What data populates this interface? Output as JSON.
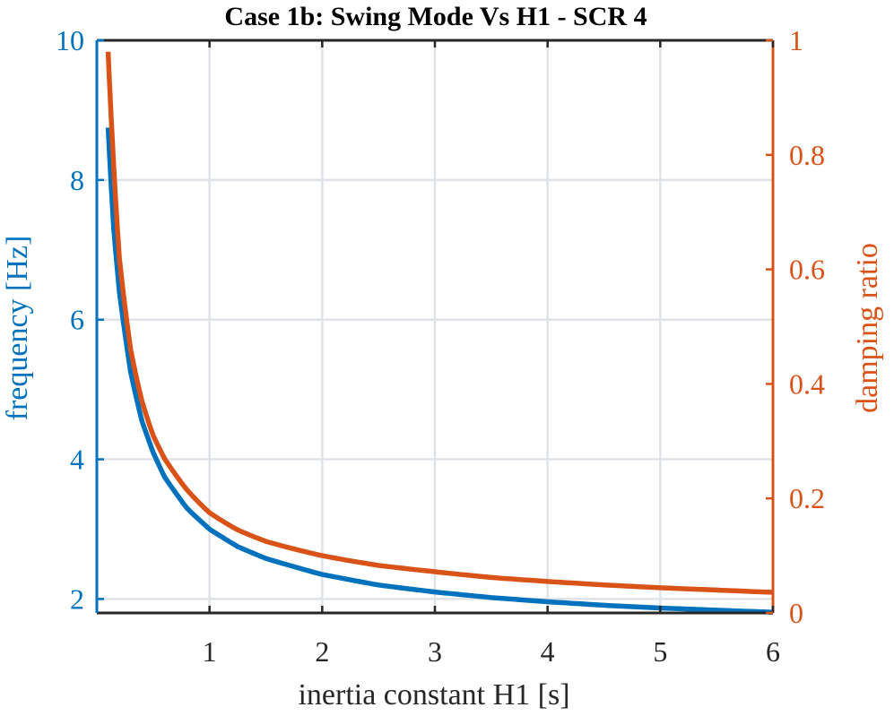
{
  "chart_data": {
    "type": "line",
    "title": "Case 1b: Swing Mode Vs H1 - SCR 4",
    "xlabel": "inertia constant H1 [s]",
    "ylabel_left": "frequency [Hz]",
    "ylabel_right": "damping ratio",
    "xlim": [
      0,
      6
    ],
    "ylim_left": [
      1.8,
      10
    ],
    "ylim_right": [
      0,
      1
    ],
    "x_ticks": [
      1,
      2,
      3,
      4,
      5,
      6
    ],
    "x_tick_labels": [
      "1",
      "2",
      "3",
      "4",
      "5",
      "6"
    ],
    "y_left_ticks": [
      2,
      4,
      6,
      8,
      10
    ],
    "y_left_tick_labels": [
      "2",
      "4",
      "6",
      "8",
      "10"
    ],
    "y_right_ticks": [
      0,
      0.2,
      0.4,
      0.6,
      0.8,
      1
    ],
    "y_right_tick_labels": [
      "0",
      "0.2",
      "0.4",
      "0.6",
      "0.8",
      "1"
    ],
    "grid": true,
    "colors": {
      "frequency": "#0072BD",
      "damping": "#D95319",
      "grid": "#dfe3e8",
      "axis": "#262626"
    },
    "series": [
      {
        "axis": "left",
        "x": [
          0.1,
          0.15,
          0.2,
          0.3,
          0.4,
          0.5,
          0.6,
          0.8,
          1.0,
          1.25,
          1.5,
          2.0,
          2.5,
          3.0,
          3.5,
          4.0,
          4.5,
          5.0,
          5.5,
          6.0
        ],
        "values": [
          8.75,
          7.3,
          6.4,
          5.25,
          4.55,
          4.1,
          3.75,
          3.3,
          3.0,
          2.75,
          2.58,
          2.35,
          2.2,
          2.1,
          2.02,
          1.96,
          1.91,
          1.87,
          1.84,
          1.81
        ]
      },
      {
        "axis": "right",
        "x": [
          0.1,
          0.15,
          0.2,
          0.3,
          0.4,
          0.5,
          0.6,
          0.8,
          1.0,
          1.25,
          1.5,
          2.0,
          2.5,
          3.0,
          3.5,
          4.0,
          4.5,
          5.0,
          5.5,
          6.0
        ],
        "values": [
          0.98,
          0.78,
          0.62,
          0.46,
          0.37,
          0.31,
          0.27,
          0.215,
          0.175,
          0.145,
          0.125,
          0.1,
          0.083,
          0.072,
          0.062,
          0.055,
          0.049,
          0.044,
          0.04,
          0.036
        ]
      }
    ]
  }
}
